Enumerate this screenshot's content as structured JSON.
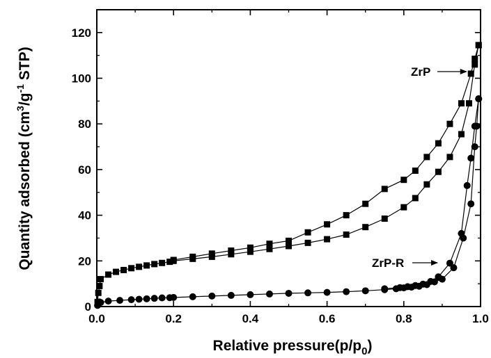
{
  "chart_data": {
    "type": "scatter",
    "xlabel": "Relative pressure(p/p0)",
    "xlabel_parts": {
      "main": "Relative pressure(p/p",
      "sub": "0",
      "close": ")"
    },
    "ylabel": "Quantity adsorbed (cm3/g-1 STP)",
    "ylabel_parts": {
      "a": "Quantity adsorbed (cm",
      "sup1": "3",
      "b": "/g",
      "sup2": "-1",
      "c": " STP)"
    },
    "xlim": [
      0.0,
      1.0
    ],
    "ylim": [
      0,
      130
    ],
    "x_ticks": [
      "0.0",
      "0.2",
      "0.4",
      "0.6",
      "0.8",
      "1.0"
    ],
    "y_ticks": [
      "0",
      "20",
      "40",
      "60",
      "80",
      "100",
      "120"
    ],
    "grid": false,
    "annotations": [
      {
        "text": "ZrP",
        "arrow_to": [
          0.985,
          102
        ]
      },
      {
        "text": "ZrP-R",
        "arrow_to": [
          0.93,
          17
        ]
      }
    ],
    "series": [
      {
        "name": "ZrP",
        "marker": "square",
        "adsorption": {
          "x": [
            0.002,
            0.004,
            0.007,
            0.01,
            0.03,
            0.05,
            0.07,
            0.09,
            0.11,
            0.13,
            0.15,
            0.17,
            0.19,
            0.2,
            0.25,
            0.3,
            0.35,
            0.4,
            0.45,
            0.5,
            0.55,
            0.6,
            0.65,
            0.7,
            0.75,
            0.8,
            0.83,
            0.86,
            0.89,
            0.92,
            0.95,
            0.97,
            0.985,
            0.995
          ],
          "y": [
            2,
            6,
            9,
            12,
            14,
            15.2,
            16,
            16.8,
            17.4,
            18,
            18.6,
            19.1,
            19.6,
            20,
            20.9,
            21.8,
            22.9,
            24,
            25.2,
            26.5,
            27.9,
            29.5,
            31.5,
            34.8,
            38.5,
            43.5,
            47.5,
            53.5,
            59,
            65.5,
            75.5,
            89,
            106,
            114.5
          ]
        },
        "desorption": {
          "x": [
            0.995,
            0.985,
            0.975,
            0.95,
            0.92,
            0.89,
            0.86,
            0.83,
            0.8,
            0.75,
            0.7,
            0.65,
            0.6,
            0.55,
            0.5,
            0.45,
            0.4,
            0.35,
            0.3,
            0.25,
            0.2
          ],
          "y": [
            114.5,
            108.5,
            102,
            89,
            80,
            71.5,
            65.5,
            59.5,
            55.5,
            51.5,
            45,
            40,
            36,
            32.5,
            28.8,
            27.5,
            25.8,
            24.5,
            23.2,
            21.8,
            20.4
          ]
        }
      },
      {
        "name": "ZrP-R",
        "marker": "circle",
        "adsorption": {
          "x": [
            0.002,
            0.004,
            0.007,
            0.01,
            0.03,
            0.06,
            0.09,
            0.11,
            0.13,
            0.15,
            0.17,
            0.19,
            0.2,
            0.25,
            0.3,
            0.35,
            0.4,
            0.45,
            0.5,
            0.55,
            0.6,
            0.65,
            0.7,
            0.75,
            0.78,
            0.8,
            0.82,
            0.84,
            0.86,
            0.88,
            0.9,
            0.93,
            0.955,
            0.975,
            0.985,
            0.99,
            0.995
          ],
          "y": [
            0.5,
            1.2,
            2,
            1.8,
            2.4,
            2.7,
            3,
            3.2,
            3.4,
            3.6,
            3.8,
            3.9,
            4,
            4.3,
            4.6,
            4.9,
            5.2,
            5.5,
            5.8,
            6,
            6.2,
            6.5,
            6.9,
            7.4,
            7.8,
            8.2,
            8.5,
            8.9,
            9.6,
            10.8,
            12,
            17,
            30,
            45,
            70,
            79,
            91
          ]
        },
        "desorption": {
          "x": [
            0.995,
            0.985,
            0.975,
            0.965,
            0.95,
            0.92,
            0.89,
            0.87,
            0.85,
            0.83,
            0.81,
            0.79,
            0.75
          ],
          "y": [
            91,
            79,
            65,
            53,
            32,
            19,
            13,
            11,
            9.8,
            9.2,
            8.7,
            8.3,
            7.8
          ]
        }
      }
    ]
  }
}
